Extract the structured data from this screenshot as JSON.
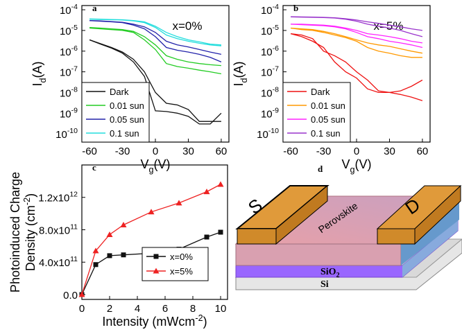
{
  "chart_data": [
    {
      "type": "line",
      "panel": "a",
      "log_y": true,
      "legend": "lower left",
      "annotation": "x=0%",
      "xlabel": {
        "text": "V",
        "sub": "g",
        "end": "(V)"
      },
      "ylabel": [
        {
          "text": "I",
          "sub": "d",
          "end": "(A)"
        }
      ],
      "xlim": [
        -67,
        67
      ],
      "xticks": [
        -60,
        -30,
        0,
        30,
        60
      ],
      "ylim": [
        4e-11,
        0.00016
      ],
      "yticks": [
        {
          "value": 0.0001,
          "label": "10",
          "exponent": "-4"
        },
        {
          "value": 1e-05,
          "label": "10",
          "exponent": "-5"
        },
        {
          "value": 1e-06,
          "label": "10",
          "exponent": "-6"
        },
        {
          "value": 1e-07,
          "label": "10",
          "exponent": "-7"
        },
        {
          "value": 1e-08,
          "label": "10",
          "exponent": "-8"
        },
        {
          "value": 1e-09,
          "label": "10",
          "exponent": "-9"
        },
        {
          "value": 1e-10,
          "label": "10",
          "exponent": "-10"
        }
      ],
      "x": [
        -60,
        -50,
        -40,
        -30,
        -20,
        -10,
        0,
        10,
        20,
        30,
        40,
        50,
        60
      ],
      "series": [
        {
          "name": "Dark",
          "color": "#111111",
          "values": [
            3.5e-06,
            2.2e-06,
            1.4e-06,
            8e-07,
            3e-07,
            6e-08,
            1.3e-09,
            1.2e-09,
            1e-09,
            7e-10,
            3e-10,
            3e-10,
            1e-09
          ],
          "return_values": [
            3.5e-06,
            2.3e-06,
            1.5e-06,
            9e-07,
            4e-07,
            1e-07,
            1e-08,
            3e-09,
            2.5e-09,
            1.5e-09,
            4e-10,
            4e-10,
            4e-10
          ]
        },
        {
          "name": "0.01 sun",
          "color": "#22cc22",
          "values": [
            1.3e-05,
            1.2e-05,
            1.1e-05,
            1e-05,
            8e-06,
            3.5e-06,
            1.2e-06,
            2.5e-07,
            1.8e-07,
            1.5e-07,
            1.2e-07,
            1e-07,
            8e-08
          ],
          "return_values": [
            1.4e-05,
            1.3e-05,
            1.2e-05,
            1.1e-05,
            9e-06,
            5e-06,
            2e-06,
            6e-07,
            4e-07,
            3e-07,
            2.5e-07,
            2.2e-07,
            2e-07
          ]
        },
        {
          "name": "0.05 sun",
          "color": "#2222aa",
          "values": [
            3e-05,
            2.8e-05,
            2.6e-05,
            2.4e-05,
            1.8e-05,
            1.2e-05,
            5e-06,
            1.5e-06,
            1.1e-06,
            9e-07,
            7e-07,
            5e-07,
            3e-07
          ],
          "return_values": [
            3e-05,
            2.9e-05,
            2.7e-05,
            2.5e-05,
            2e-05,
            1.5e-05,
            8e-06,
            3e-06,
            2e-06,
            1.6e-06,
            1.2e-06,
            9e-07,
            7e-07
          ]
        },
        {
          "name": "0.1 sun",
          "color": "#22dddd",
          "values": [
            3.5e-05,
            3.4e-05,
            3.3e-05,
            3.2e-05,
            2.9e-05,
            2.4e-05,
            1.4e-05,
            6e-06,
            4e-06,
            3e-06,
            2.4e-06,
            2e-06,
            1.8e-06
          ],
          "return_values": [
            3.6e-05,
            3.5e-05,
            3.4e-05,
            3.3e-05,
            3e-05,
            2.6e-05,
            1.6e-05,
            8e-06,
            5e-06,
            3.5e-06,
            2.8e-06,
            2.2e-06,
            2e-06
          ]
        }
      ]
    },
    {
      "type": "line",
      "panel": "b",
      "log_y": true,
      "legend": "lower left",
      "annotation": "x=5%",
      "xlabel": {
        "text": "V",
        "sub": "g",
        "end": "(V)"
      },
      "ylabel": [
        {
          "text": "I",
          "sub": "d",
          "end": "(A)"
        }
      ],
      "xlim": [
        -67,
        67
      ],
      "xticks": [
        -60,
        -30,
        0,
        30,
        60
      ],
      "ylim": [
        4e-11,
        0.00016
      ],
      "yticks": [
        {
          "value": 0.0001,
          "label": "10",
          "exponent": "-4"
        },
        {
          "value": 1e-05,
          "label": "10",
          "exponent": "-5"
        },
        {
          "value": 1e-06,
          "label": "10",
          "exponent": "-6"
        },
        {
          "value": 1e-07,
          "label": "10",
          "exponent": "-7"
        },
        {
          "value": 1e-08,
          "label": "10",
          "exponent": "-8"
        },
        {
          "value": 1e-09,
          "label": "10",
          "exponent": "-9"
        },
        {
          "value": 1e-10,
          "label": "10",
          "exponent": "-10"
        }
      ],
      "x": [
        -60,
        -50,
        -40,
        -30,
        -20,
        -10,
        0,
        10,
        20,
        30,
        40,
        50,
        60
      ],
      "series": [
        {
          "name": "Dark",
          "color": "#ee1111",
          "values": [
            7e-06,
            5e-06,
            3e-06,
            1.5e-06,
            3e-07,
            1e-07,
            5e-08,
            1.5e-08,
            1e-08,
            1e-08,
            1.2e-08,
            2e-08,
            4e-08
          ],
          "return_values": [
            7e-06,
            6e-06,
            4e-06,
            1e-06,
            6e-07,
            3e-07,
            1e-07,
            4e-08,
            1.2e-08,
            1e-08,
            8e-09,
            6e-09,
            4e-09
          ]
        },
        {
          "name": "0.01 sun",
          "color": "#ff9900",
          "values": [
            1.3e-05,
            1.1e-05,
            1e-05,
            8e-06,
            6e-06,
            4.5e-06,
            3e-06,
            1.5e-06,
            1e-06,
            8e-07,
            6e-07,
            5e-07,
            5e-07
          ],
          "return_values": [
            1.3e-05,
            1.2e-05,
            1.1e-05,
            9e-06,
            7e-06,
            5e-06,
            3.5e-06,
            2.5e-06,
            2e-06,
            1.7e-06,
            1.3e-06,
            1e-06,
            8e-07
          ]
        },
        {
          "name": "0.05 sun",
          "color": "#ff22ff",
          "values": [
            2e-05,
            1.9e-05,
            1.8e-05,
            1.7e-05,
            1.5e-05,
            1.2e-05,
            8e-06,
            5e-06,
            4e-06,
            3e-06,
            2.5e-06,
            2e-06,
            1.5e-06
          ],
          "return_values": [
            2e-05,
            2e-05,
            1.9e-05,
            1.8e-05,
            1.6e-05,
            1.3e-05,
            1e-05,
            7e-06,
            6e-06,
            5e-06,
            4e-06,
            3e-06,
            2.5e-06
          ]
        },
        {
          "name": "0.1 sun",
          "color": "#9933cc",
          "values": [
            4.5e-05,
            4.4e-05,
            4.3e-05,
            4.2e-05,
            4e-05,
            3.5e-05,
            2.8e-05,
            2e-05,
            1.6e-05,
            1.3e-05,
            1e-05,
            7e-06,
            5e-06
          ],
          "return_values": [
            4.6e-05,
            4.5e-05,
            4.4e-05,
            4.3e-05,
            4.1e-05,
            3.7e-05,
            3.2e-05,
            2.6e-05,
            2.2e-05,
            1.8e-05,
            1.5e-05,
            1.2e-05,
            1e-05
          ]
        }
      ]
    },
    {
      "type": "line",
      "panel": "c",
      "log_y": false,
      "legend": "lower right",
      "xlabel": {
        "text": "Intensity (mWcm",
        "sup": "-2",
        "end": ")"
      },
      "ylabel": [
        {
          "text": "Photoinduced Charge"
        },
        {
          "text": "Density (cm",
          "sup": "-2",
          "end": ")"
        }
      ],
      "xlim": [
        0,
        10.5
      ],
      "xticks": [
        0,
        2,
        4,
        6,
        8,
        10
      ],
      "ylim": [
        -60000000000.0,
        1600000000000.0
      ],
      "yticks": [
        {
          "value": 0,
          "label": "0.0"
        },
        {
          "value": 400000000000.0,
          "label": "4.0x10",
          "exponent": "11"
        },
        {
          "value": 800000000000.0,
          "label": "8.0x10",
          "exponent": "11"
        },
        {
          "value": 1200000000000.0,
          "label": "1.2x10",
          "exponent": "12"
        }
      ],
      "x": [
        0,
        1,
        2,
        3,
        5,
        7,
        9,
        10
      ],
      "series": [
        {
          "name": "x=0%",
          "color": "#111111",
          "marker": "square",
          "values": [
            0,
            370000000000.0,
            480000000000.0,
            490000000000.0,
            510000000000.0,
            560000000000.0,
            710000000000.0,
            770000000000.0
          ]
        },
        {
          "name": "x=5%",
          "color": "#ee2222",
          "marker": "triangle",
          "values": [
            0,
            540000000000.0,
            740000000000.0,
            860000000000.0,
            1020000000000.0,
            1130000000000.0,
            1270000000000.0,
            1360000000000.0
          ]
        }
      ]
    }
  ],
  "diagram": {
    "panel": "d",
    "source": "S",
    "drain": "D",
    "film": "Perovskite",
    "oxide": {
      "text": "SiO",
      "sub": "2"
    },
    "substrate": "Si"
  }
}
